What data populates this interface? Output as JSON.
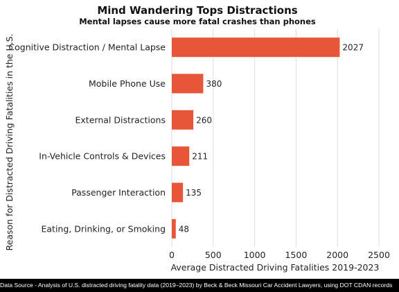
{
  "chart_data": {
    "type": "bar",
    "orientation": "horizontal",
    "title": "Mind Wandering Tops Distractions",
    "subtitle": "Mental lapses cause more fatal crashes than phones",
    "categories": [
      "Cognitive Distraction / Mental Lapse",
      "Mobile Phone Use",
      "External Distractions",
      "In-Vehicle Controls & Devices",
      "Passenger Interaction",
      "Eating, Drinking, or Smoking"
    ],
    "values": [
      2027,
      380,
      260,
      211,
      135,
      48
    ],
    "xlabel": "Average Distracted Driving Fatalities 2019-2023",
    "ylabel": "Reason for Distracted Driving Fatalities in the U.S.",
    "xlim": [
      0,
      2500
    ],
    "xticks": [
      0,
      500,
      1000,
      1500,
      2000,
      2500
    ],
    "grid": true,
    "bar_color": "#e8563a"
  },
  "footer": {
    "source": "Data Source - Analysis of U.S. distracted driving fatality data (2019–2023) by Beck & Beck Missouri Car Accident Lawyers, using DOT CDAN records"
  }
}
